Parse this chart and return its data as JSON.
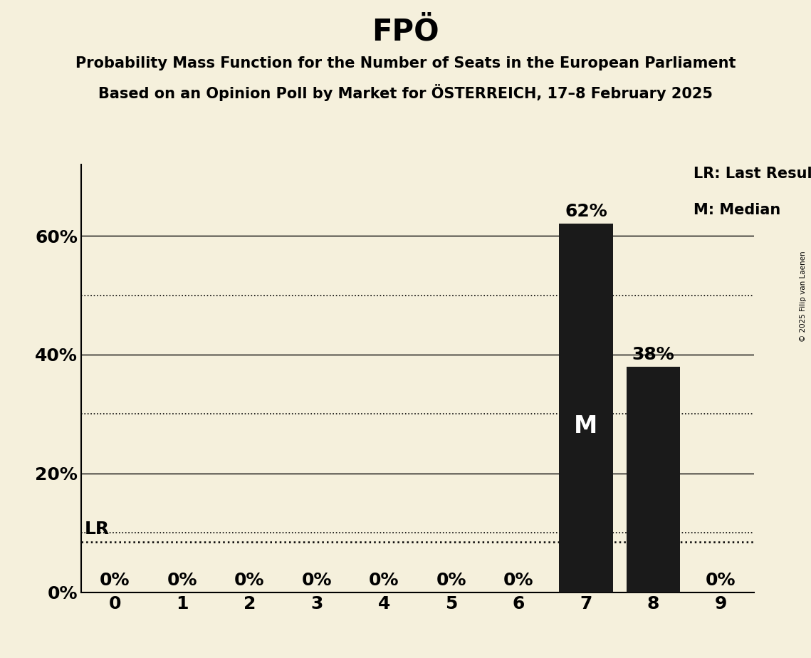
{
  "title": "FPÖ",
  "subtitle1": "Probability Mass Function for the Number of Seats in the European Parliament",
  "subtitle2": "Based on an Opinion Poll by Market for ÖSTERREICH, 17–8 February 2025",
  "copyright": "© 2025 Filip van Laenen",
  "categories": [
    0,
    1,
    2,
    3,
    4,
    5,
    6,
    7,
    8,
    9
  ],
  "values": [
    0.0,
    0.0,
    0.0,
    0.0,
    0.0,
    0.0,
    0.0,
    0.62,
    0.38,
    0.0
  ],
  "bar_color": "#1a1a1a",
  "background_color": "#f5f0dc",
  "median_seat": 7,
  "last_result_value": 0.085,
  "yticks": [
    0.0,
    0.2,
    0.4,
    0.6
  ],
  "ylim": [
    0.0,
    0.72
  ],
  "xlim": [
    -0.5,
    9.5
  ],
  "title_fontsize": 30,
  "subtitle_fontsize": 15,
  "tick_fontsize": 18,
  "bar_label_fontsize": 18,
  "legend_fontsize": 15,
  "median_label": "M",
  "lr_label": "LR",
  "legend_lr": "LR: Last Result",
  "legend_m": "M: Median",
  "dotted_lines": [
    0.1,
    0.3,
    0.5
  ],
  "solid_lines": [
    0.2,
    0.4,
    0.6
  ]
}
